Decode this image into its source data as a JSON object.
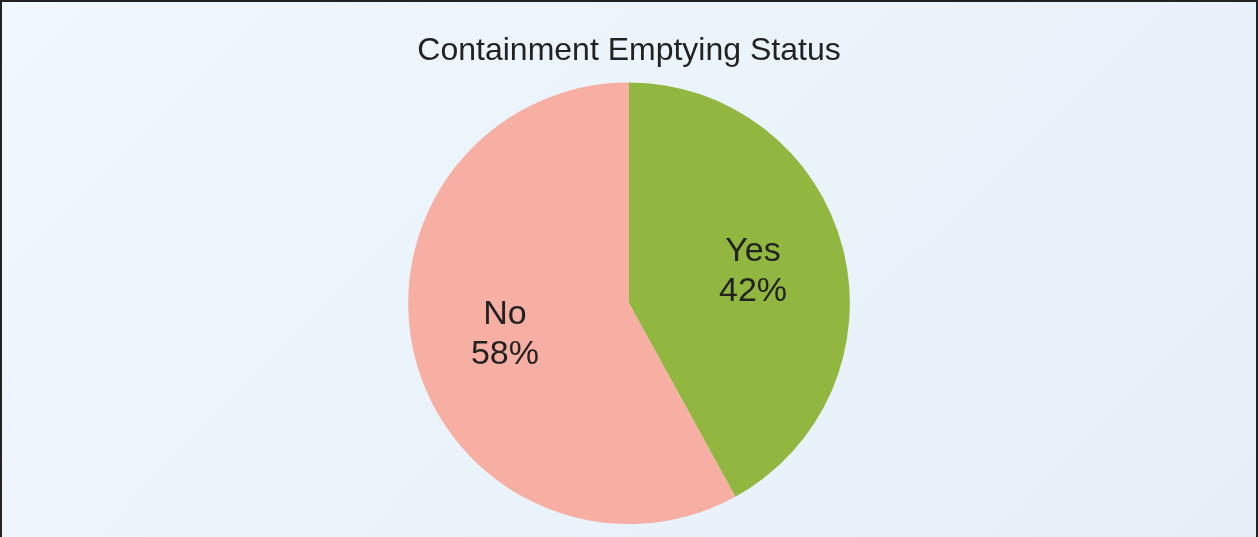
{
  "chart_data": {
    "type": "pie",
    "title": "Containment Emptying Status",
    "categories": [
      "Yes",
      "No"
    ],
    "values": [
      42,
      58
    ],
    "value_labels": [
      "42%",
      "58%"
    ],
    "colors": [
      "#92b741",
      "#f7aea3"
    ],
    "legend": false
  }
}
